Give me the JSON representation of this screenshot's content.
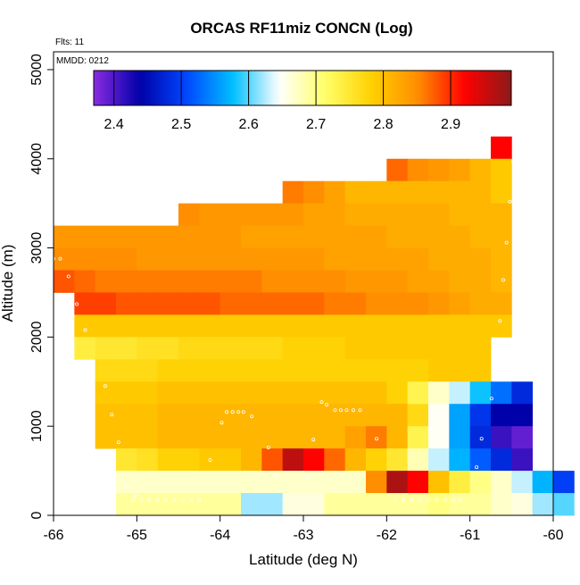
{
  "chart_data": {
    "type": "heatmap",
    "title": "ORCAS RF11miz CONCN (Log)",
    "annotations": [
      "Flts: 11",
      "MMDD: 0212"
    ],
    "xlabel": "Latitude (deg N)",
    "ylabel": "Altitude (m)",
    "xlim": [
      -66,
      -60
    ],
    "ylim": [
      0,
      5200
    ],
    "x_ticks": [
      -66,
      -65,
      -64,
      -63,
      -62,
      -61,
      -60
    ],
    "y_ticks": [
      0,
      1000,
      2000,
      3000,
      4000,
      5000
    ],
    "grid": false,
    "colorbar": {
      "min": 2.37,
      "max": 2.99,
      "ticks": [
        2.4,
        2.5,
        2.6,
        2.7,
        2.8,
        2.9
      ],
      "placement": "top-inside",
      "colormap": [
        "#8a2be2",
        "#0000a8",
        "#0047ff",
        "#00bfff",
        "#ffffff",
        "#ffff66",
        "#ffd000",
        "#ff8c00",
        "#ff0000",
        "#8b1a1a"
      ]
    },
    "cell_size": {
      "dx_deg": 0.25,
      "dz_m": 250
    },
    "rows": [
      {
        "z": 4000,
        "x0": -60.75,
        "values": [
          2.92
        ]
      },
      {
        "z": 3750,
        "x0": -62,
        "values": [
          2.87,
          2.85,
          2.84,
          2.83,
          2.81,
          2.79
        ]
      },
      {
        "z": 3500,
        "x0": -63.25,
        "values": [
          2.86,
          2.85,
          2.83,
          2.81,
          2.81,
          2.81,
          2.81,
          2.81,
          2.81,
          2.81,
          2.79
        ]
      },
      {
        "z": 3250,
        "x0": -64.5,
        "values": [
          2.85,
          2.84,
          2.84,
          2.84,
          2.84,
          2.84,
          2.83,
          2.83,
          2.82,
          2.82,
          2.82,
          2.82,
          2.82,
          2.81,
          2.81,
          2.81
        ]
      },
      {
        "z": 3000,
        "x0": -66,
        "values": [
          2.84,
          2.84,
          2.84,
          2.84,
          2.84,
          2.84,
          2.84,
          2.84,
          2.84,
          2.83,
          2.83,
          2.83,
          2.83,
          2.83,
          2.83,
          2.83,
          2.82,
          2.82,
          2.82,
          2.82,
          2.81,
          2.81
        ]
      },
      {
        "z": 2750,
        "x0": -66,
        "values": [
          2.85,
          2.85,
          2.85,
          2.85,
          2.84,
          2.84,
          2.84,
          2.84,
          2.84,
          2.84,
          2.84,
          2.84,
          2.84,
          2.83,
          2.83,
          2.83,
          2.83,
          2.83,
          2.82,
          2.82,
          2.82,
          2.81
        ]
      },
      {
        "z": 2500,
        "x0": -66,
        "values": [
          2.88,
          2.87,
          2.86,
          2.86,
          2.86,
          2.86,
          2.86,
          2.86,
          2.86,
          2.86,
          2.85,
          2.85,
          2.85,
          2.85,
          2.84,
          2.84,
          2.84,
          2.83,
          2.83,
          2.82,
          2.82,
          2.81
        ]
      },
      {
        "z": 2250,
        "x0": -65.75,
        "values": [
          2.89,
          2.89,
          2.88,
          2.88,
          2.88,
          2.88,
          2.88,
          2.87,
          2.87,
          2.87,
          2.87,
          2.87,
          2.86,
          2.86,
          2.85,
          2.85,
          2.85,
          2.84,
          2.83,
          2.82,
          2.82
        ]
      },
      {
        "z": 2000,
        "x0": -65.75,
        "values": [
          2.79,
          2.79,
          2.79,
          2.79,
          2.79,
          2.79,
          2.79,
          2.79,
          2.79,
          2.79,
          2.79,
          2.79,
          2.79,
          2.79,
          2.79,
          2.79,
          2.79,
          2.79,
          2.79,
          2.79,
          2.79
        ]
      },
      {
        "z": 1750,
        "x0": -65.75,
        "values": [
          2.74,
          2.75,
          2.75,
          2.76,
          2.76,
          2.77,
          2.77,
          2.77,
          2.77,
          2.77,
          2.78,
          2.78,
          2.78,
          2.79,
          2.79,
          2.79,
          2.79,
          2.79,
          2.79,
          2.79
        ]
      },
      {
        "z": 1500,
        "x0": -65.5,
        "values": [
          2.77,
          2.77,
          2.77,
          2.78,
          2.78,
          2.78,
          2.78,
          2.78,
          2.78,
          2.78,
          2.78,
          2.78,
          2.78,
          2.78,
          2.78,
          2.78,
          2.79,
          2.79,
          2.79
        ]
      },
      {
        "z": 1250,
        "x0": -65.5,
        "values": [
          2.79,
          2.79,
          2.79,
          2.8,
          2.8,
          2.8,
          2.8,
          2.8,
          2.8,
          2.8,
          2.8,
          2.8,
          2.8,
          2.8,
          2.78,
          2.73,
          2.67,
          2.63,
          2.58,
          2.53,
          2.48
        ]
      },
      {
        "z": 1000,
        "x0": -65.5,
        "values": [
          2.8,
          2.8,
          2.8,
          2.81,
          2.81,
          2.81,
          2.81,
          2.81,
          2.81,
          2.81,
          2.81,
          2.81,
          2.81,
          2.81,
          2.81,
          2.77,
          2.65,
          2.56,
          2.49,
          2.44,
          2.44
        ]
      },
      {
        "z": 750,
        "x0": -65.5,
        "values": [
          2.8,
          2.8,
          2.8,
          2.81,
          2.81,
          2.81,
          2.81,
          2.81,
          2.81,
          2.81,
          2.81,
          2.81,
          2.83,
          2.86,
          2.81,
          2.73,
          2.65,
          2.56,
          2.48,
          2.41,
          2.39
        ]
      },
      {
        "z": 500,
        "x0": -65.25,
        "values": [
          2.75,
          2.76,
          2.78,
          2.78,
          2.79,
          2.79,
          2.81,
          2.88,
          2.96,
          2.92,
          2.87,
          2.81,
          2.78,
          2.75,
          2.68,
          2.63,
          2.57,
          2.52,
          2.48,
          2.41
        ]
      },
      {
        "z": 250,
        "x0": -65.25,
        "values": [
          2.67,
          2.67,
          2.67,
          2.67,
          2.67,
          2.67,
          2.67,
          2.67,
          2.67,
          2.67,
          2.67,
          2.67,
          2.85,
          2.97,
          2.92,
          2.8,
          2.74,
          2.7,
          2.67,
          2.63,
          2.57,
          2.5
        ]
      },
      {
        "z": 0,
        "x0": -65.25,
        "values": [
          2.69,
          2.69,
          2.69,
          2.69,
          2.69,
          2.69,
          2.62,
          2.62,
          2.66,
          2.66,
          2.69,
          2.69,
          2.69,
          2.69,
          2.69,
          2.7,
          2.69,
          2.69,
          2.67,
          2.66,
          2.62,
          2.6
        ]
      }
    ],
    "flight_points": [
      [
        -66,
        2880
      ],
      [
        -65.92,
        2880
      ],
      [
        -65.82,
        2680
      ],
      [
        -65.72,
        2370
      ],
      [
        -65.62,
        2080
      ],
      [
        -65.38,
        1450
      ],
      [
        -65.3,
        1130
      ],
      [
        -65.22,
        820
      ],
      [
        -65.12,
        330
      ],
      [
        -65.02,
        220
      ],
      [
        -64.12,
        620
      ],
      [
        -63.98,
        1040
      ],
      [
        -63.92,
        1160
      ],
      [
        -63.85,
        1160
      ],
      [
        -63.78,
        1160
      ],
      [
        -63.72,
        1160
      ],
      [
        -63.62,
        1110
      ],
      [
        -63.42,
        760
      ],
      [
        -63.32,
        450
      ],
      [
        -63.22,
        170
      ],
      [
        -62.95,
        420
      ],
      [
        -62.88,
        850
      ],
      [
        -62.78,
        1270
      ],
      [
        -62.72,
        1240
      ],
      [
        -62.62,
        1180
      ],
      [
        -62.55,
        1180
      ],
      [
        -62.48,
        1180
      ],
      [
        -62.4,
        1180
      ],
      [
        -62.32,
        1180
      ],
      [
        -62.12,
        860
      ],
      [
        -61.9,
        170
      ],
      [
        -61.8,
        170
      ],
      [
        -61.7,
        170
      ],
      [
        -61.6,
        170
      ],
      [
        -61.5,
        170
      ],
      [
        -61.4,
        170
      ],
      [
        -61.3,
        170
      ],
      [
        -61.2,
        170
      ],
      [
        -61.12,
        170
      ],
      [
        -60.92,
        540
      ],
      [
        -60.86,
        860
      ],
      [
        -60.74,
        1310
      ],
      [
        -60.7,
        1750
      ],
      [
        -60.64,
        2180
      ],
      [
        -60.6,
        2640
      ],
      [
        -60.56,
        3060
      ],
      [
        -60.52,
        3520
      ],
      [
        -60.48,
        3970
      ],
      [
        -65.05,
        170
      ],
      [
        -64.95,
        170
      ],
      [
        -64.85,
        170
      ],
      [
        -64.75,
        170
      ],
      [
        -64.65,
        170
      ],
      [
        -64.55,
        170
      ],
      [
        -64.45,
        170
      ],
      [
        -64.35,
        170
      ],
      [
        -64.25,
        170
      ]
    ]
  }
}
